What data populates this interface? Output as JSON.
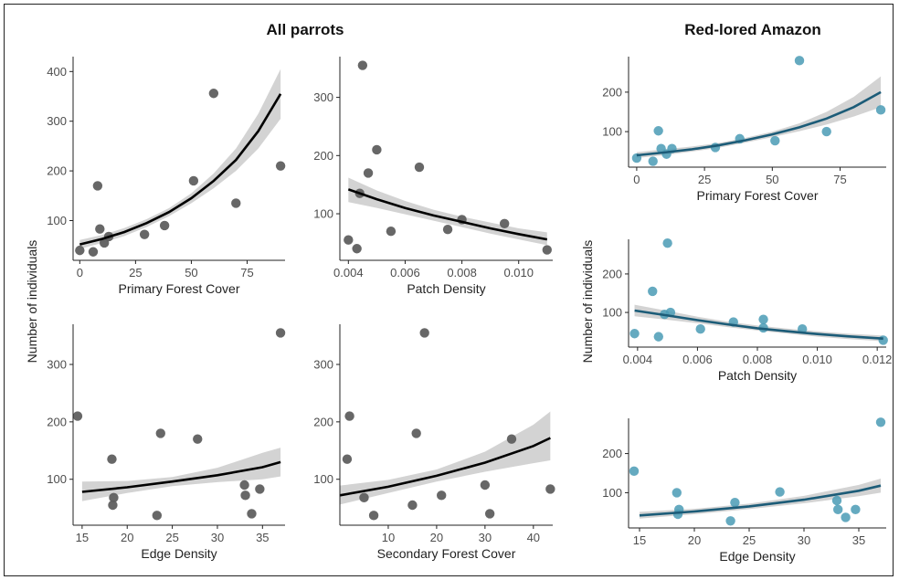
{
  "titles": {
    "left": "All parrots",
    "right": "Red-lored Amazon"
  },
  "ylabel_left": "Number of individuals",
  "ylabel_right": "Number of individuals",
  "colors": {
    "black_points": "#5f5f5f",
    "teal_points": "#4a9bb5",
    "black_fit": "#000000",
    "teal_fit": "#1c5c78",
    "band": "#d3d3d3"
  },
  "chart_data": [
    {
      "id": "ap_pfc",
      "type": "scatter",
      "group": "All parrots",
      "xlabel": "Primary Forest Cover",
      "ylabel": "",
      "xlim": [
        -3,
        92
      ],
      "ylim": [
        20,
        430
      ],
      "xticks": [
        0,
        25,
        50,
        75
      ],
      "xtick_labels": [
        "0",
        "25",
        "50",
        "75"
      ],
      "yticks": [
        100,
        200,
        300,
        400
      ],
      "ytick_labels": [
        "100",
        "200",
        "300",
        "400"
      ],
      "points": [
        [
          0,
          40
        ],
        [
          6,
          37
        ],
        [
          8,
          170
        ],
        [
          9,
          83
        ],
        [
          11,
          55
        ],
        [
          13,
          68
        ],
        [
          29,
          72
        ],
        [
          38,
          90
        ],
        [
          51,
          180
        ],
        [
          60,
          356
        ],
        [
          70,
          135
        ],
        [
          90,
          210
        ]
      ],
      "fit": [
        [
          0,
          52
        ],
        [
          10,
          63
        ],
        [
          20,
          77
        ],
        [
          30,
          95
        ],
        [
          40,
          117
        ],
        [
          50,
          145
        ],
        [
          60,
          180
        ],
        [
          70,
          222
        ],
        [
          80,
          280
        ],
        [
          90,
          355
        ]
      ],
      "band_lower": [
        [
          0,
          43
        ],
        [
          10,
          55
        ],
        [
          20,
          69
        ],
        [
          30,
          87
        ],
        [
          40,
          109
        ],
        [
          50,
          135
        ],
        [
          60,
          165
        ],
        [
          70,
          200
        ],
        [
          80,
          245
        ],
        [
          90,
          305
        ]
      ],
      "band_upper": [
        [
          0,
          61
        ],
        [
          10,
          71
        ],
        [
          20,
          85
        ],
        [
          30,
          103
        ],
        [
          40,
          125
        ],
        [
          50,
          155
        ],
        [
          60,
          195
        ],
        [
          70,
          245
        ],
        [
          80,
          315
        ],
        [
          90,
          405
        ]
      ]
    },
    {
      "id": "ap_pd",
      "type": "scatter",
      "group": "All parrots",
      "xlabel": "Patch Density",
      "ylabel": "",
      "xlim": [
        0.0037,
        0.0112
      ],
      "ylim": [
        20,
        370
      ],
      "xticks": [
        0.004,
        0.006,
        0.008,
        0.01
      ],
      "xtick_labels": [
        "0.004",
        "0.006",
        "0.008",
        "0.010"
      ],
      "yticks": [
        100,
        200,
        300
      ],
      "ytick_labels": [
        "100",
        "200",
        "300"
      ],
      "points": [
        [
          0.004,
          55
        ],
        [
          0.0043,
          40
        ],
        [
          0.0044,
          135
        ],
        [
          0.0045,
          355
        ],
        [
          0.0047,
          170
        ],
        [
          0.005,
          210
        ],
        [
          0.0055,
          70
        ],
        [
          0.0065,
          180
        ],
        [
          0.0075,
          73
        ],
        [
          0.008,
          90
        ],
        [
          0.0095,
          83
        ],
        [
          0.011,
          38
        ]
      ],
      "fit": [
        [
          0.004,
          142
        ],
        [
          0.005,
          125
        ],
        [
          0.006,
          110
        ],
        [
          0.007,
          97
        ],
        [
          0.008,
          86
        ],
        [
          0.009,
          75
        ],
        [
          0.01,
          65
        ],
        [
          0.011,
          56
        ]
      ],
      "band_lower": [
        [
          0.004,
          120
        ],
        [
          0.005,
          110
        ],
        [
          0.006,
          99
        ],
        [
          0.007,
          88
        ],
        [
          0.008,
          77
        ],
        [
          0.009,
          66
        ],
        [
          0.01,
          56
        ],
        [
          0.011,
          46
        ]
      ],
      "band_upper": [
        [
          0.004,
          162
        ],
        [
          0.005,
          140
        ],
        [
          0.006,
          122
        ],
        [
          0.007,
          107
        ],
        [
          0.008,
          95
        ],
        [
          0.009,
          85
        ],
        [
          0.01,
          75
        ],
        [
          0.011,
          68
        ]
      ]
    },
    {
      "id": "ap_ed",
      "type": "scatter",
      "group": "All parrots",
      "xlabel": "Edge Density",
      "ylabel": "",
      "xlim": [
        14,
        37.5
      ],
      "ylim": [
        20,
        370
      ],
      "xticks": [
        15,
        20,
        25,
        30,
        35
      ],
      "xtick_labels": [
        "15",
        "20",
        "25",
        "30",
        "35"
      ],
      "yticks": [
        100,
        200,
        300
      ],
      "ytick_labels": [
        "100",
        "200",
        "300"
      ],
      "points": [
        [
          14.5,
          210
        ],
        [
          18.3,
          135
        ],
        [
          18.4,
          55
        ],
        [
          18.5,
          68
        ],
        [
          23.3,
          37
        ],
        [
          23.7,
          180
        ],
        [
          27.8,
          170
        ],
        [
          33.0,
          90
        ],
        [
          33.1,
          72
        ],
        [
          33.8,
          40
        ],
        [
          34.7,
          83
        ],
        [
          37.0,
          355
        ]
      ],
      "fit": [
        [
          15,
          78
        ],
        [
          20,
          86
        ],
        [
          25,
          96
        ],
        [
          30,
          107
        ],
        [
          35,
          121
        ],
        [
          37,
          130
        ]
      ],
      "band_lower": [
        [
          15,
          62
        ],
        [
          20,
          76
        ],
        [
          25,
          88
        ],
        [
          30,
          95
        ],
        [
          35,
          100
        ],
        [
          37,
          105
        ]
      ],
      "band_upper": [
        [
          15,
          96
        ],
        [
          20,
          97
        ],
        [
          25,
          104
        ],
        [
          30,
          120
        ],
        [
          35,
          146
        ],
        [
          37,
          155
        ]
      ]
    },
    {
      "id": "ap_sfc",
      "type": "scatter",
      "group": "All parrots",
      "xlabel": "Secondary Forest Cover",
      "ylabel": "",
      "xlim": [
        0,
        44
      ],
      "ylim": [
        20,
        370
      ],
      "xticks": [
        10,
        20,
        30,
        40
      ],
      "xtick_labels": [
        "10",
        "20",
        "30",
        "40"
      ],
      "yticks": [
        100,
        200,
        300
      ],
      "ytick_labels": [
        "100",
        "200",
        "300"
      ],
      "points": [
        [
          1.5,
          135
        ],
        [
          2.0,
          210
        ],
        [
          5.0,
          68
        ],
        [
          7.0,
          37
        ],
        [
          15.0,
          55
        ],
        [
          15.8,
          180
        ],
        [
          17.5,
          355
        ],
        [
          21.0,
          72
        ],
        [
          30.0,
          90
        ],
        [
          31.0,
          40
        ],
        [
          35.5,
          170
        ],
        [
          43.5,
          83
        ]
      ],
      "fit": [
        [
          0,
          72
        ],
        [
          10,
          87
        ],
        [
          20,
          106
        ],
        [
          30,
          129
        ],
        [
          40,
          158
        ],
        [
          43.5,
          172
        ]
      ],
      "band_lower": [
        [
          0,
          56
        ],
        [
          10,
          76
        ],
        [
          20,
          96
        ],
        [
          30,
          113
        ],
        [
          40,
          128
        ],
        [
          43.5,
          133
        ]
      ],
      "band_upper": [
        [
          0,
          89
        ],
        [
          10,
          99
        ],
        [
          20,
          117
        ],
        [
          30,
          148
        ],
        [
          40,
          195
        ],
        [
          43.5,
          218
        ]
      ]
    },
    {
      "id": "rla_pfc",
      "type": "scatter",
      "group": "Red-lored Amazon",
      "xlabel": "Primary Forest Cover",
      "ylabel": "",
      "xlim": [
        -3,
        92
      ],
      "ylim": [
        10,
        290
      ],
      "xticks": [
        0,
        25,
        50,
        75
      ],
      "xtick_labels": [
        "0",
        "25",
        "50",
        "75"
      ],
      "yticks": [
        100,
        200
      ],
      "ytick_labels": [
        "100",
        "200"
      ],
      "points": [
        [
          0,
          33
        ],
        [
          6,
          25
        ],
        [
          8,
          102
        ],
        [
          9,
          57
        ],
        [
          11,
          43
        ],
        [
          13,
          57
        ],
        [
          29,
          60
        ],
        [
          38,
          82
        ],
        [
          51,
          77
        ],
        [
          60,
          280
        ],
        [
          70,
          100
        ],
        [
          90,
          155
        ]
      ],
      "fit": [
        [
          0,
          40
        ],
        [
          10,
          47
        ],
        [
          20,
          55
        ],
        [
          30,
          65
        ],
        [
          40,
          78
        ],
        [
          50,
          93
        ],
        [
          60,
          111
        ],
        [
          70,
          133
        ],
        [
          80,
          162
        ],
        [
          90,
          200
        ]
      ],
      "band_lower": [
        [
          0,
          33
        ],
        [
          10,
          40
        ],
        [
          20,
          49
        ],
        [
          30,
          59
        ],
        [
          40,
          72
        ],
        [
          50,
          86
        ],
        [
          60,
          101
        ],
        [
          70,
          118
        ],
        [
          80,
          138
        ],
        [
          90,
          162
        ]
      ],
      "band_upper": [
        [
          0,
          48
        ],
        [
          10,
          55
        ],
        [
          20,
          62
        ],
        [
          30,
          71
        ],
        [
          40,
          84
        ],
        [
          50,
          100
        ],
        [
          60,
          121
        ],
        [
          70,
          150
        ],
        [
          80,
          188
        ],
        [
          90,
          240
        ]
      ]
    },
    {
      "id": "rla_pd",
      "type": "scatter",
      "group": "Red-lored Amazon",
      "xlabel": "Patch Density",
      "ylabel": "",
      "xlim": [
        0.0037,
        0.0123
      ],
      "ylim": [
        10,
        290
      ],
      "xticks": [
        0.004,
        0.006,
        0.008,
        0.01,
        0.012
      ],
      "xtick_labels": [
        "0.004",
        "0.006",
        "0.008",
        "0.010",
        "0.012"
      ],
      "yticks": [
        100,
        200
      ],
      "ytick_labels": [
        "100",
        "200"
      ],
      "points": [
        [
          0.0039,
          45
        ],
        [
          0.0045,
          155
        ],
        [
          0.0047,
          37
        ],
        [
          0.0049,
          95
        ],
        [
          0.005,
          280
        ],
        [
          0.0051,
          100
        ],
        [
          0.0061,
          57
        ],
        [
          0.0072,
          75
        ],
        [
          0.0082,
          82
        ],
        [
          0.0082,
          60
        ],
        [
          0.0095,
          57
        ],
        [
          0.0122,
          28
        ]
      ],
      "fit": [
        [
          0.0039,
          105
        ],
        [
          0.005,
          92
        ],
        [
          0.006,
          80
        ],
        [
          0.007,
          69
        ],
        [
          0.008,
          59
        ],
        [
          0.009,
          51
        ],
        [
          0.01,
          44
        ],
        [
          0.011,
          38
        ],
        [
          0.0122,
          32
        ]
      ],
      "band_lower": [
        [
          0.0039,
          90
        ],
        [
          0.005,
          81
        ],
        [
          0.006,
          72
        ],
        [
          0.007,
          62
        ],
        [
          0.008,
          53
        ],
        [
          0.009,
          45
        ],
        [
          0.01,
          37
        ],
        [
          0.011,
          31
        ],
        [
          0.0122,
          25
        ]
      ],
      "band_upper": [
        [
          0.0039,
          120
        ],
        [
          0.005,
          104
        ],
        [
          0.006,
          89
        ],
        [
          0.007,
          76
        ],
        [
          0.008,
          66
        ],
        [
          0.009,
          58
        ],
        [
          0.01,
          51
        ],
        [
          0.011,
          45
        ],
        [
          0.0122,
          40
        ]
      ]
    },
    {
      "id": "rla_ed",
      "type": "scatter",
      "group": "Red-lored Amazon",
      "xlabel": "Edge Density",
      "ylabel": "",
      "xlim": [
        14,
        37.5
      ],
      "ylim": [
        10,
        290
      ],
      "xticks": [
        15,
        20,
        25,
        30,
        35
      ],
      "xtick_labels": [
        "15",
        "20",
        "25",
        "30",
        "35"
      ],
      "yticks": [
        100,
        200
      ],
      "ytick_labels": [
        "100",
        "200"
      ],
      "points": [
        [
          14.5,
          155
        ],
        [
          18.4,
          100
        ],
        [
          18.5,
          45
        ],
        [
          18.6,
          57
        ],
        [
          23.3,
          28
        ],
        [
          23.7,
          75
        ],
        [
          27.8,
          102
        ],
        [
          33.0,
          80
        ],
        [
          33.1,
          57
        ],
        [
          33.8,
          37
        ],
        [
          34.7,
          57
        ],
        [
          37.0,
          280
        ]
      ],
      "fit": [
        [
          15,
          42
        ],
        [
          20,
          52
        ],
        [
          25,
          65
        ],
        [
          30,
          82
        ],
        [
          35,
          105
        ],
        [
          37,
          118
        ]
      ],
      "band_lower": [
        [
          15,
          34
        ],
        [
          20,
          45
        ],
        [
          25,
          58
        ],
        [
          30,
          73
        ],
        [
          35,
          91
        ],
        [
          37,
          100
        ]
      ],
      "band_upper": [
        [
          15,
          51
        ],
        [
          20,
          59
        ],
        [
          25,
          72
        ],
        [
          30,
          92
        ],
        [
          35,
          120
        ],
        [
          37,
          136
        ]
      ]
    }
  ]
}
